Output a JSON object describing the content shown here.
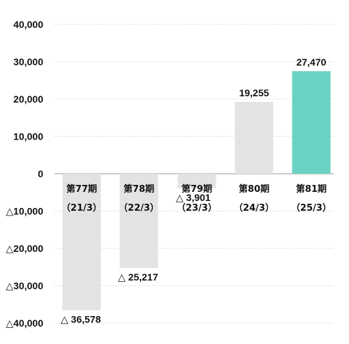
{
  "chart_data": {
    "type": "bar",
    "categories": [
      "第77期",
      "第78期",
      "第79期",
      "第80期",
      "第81期"
    ],
    "periods": [
      "（21/3）",
      "（22/3）",
      "（23/3）",
      "（24/3）",
      "（25/3）"
    ],
    "values": [
      -36578,
      -25217,
      -3901,
      19255,
      27470
    ],
    "value_labels": [
      "△ 36,578",
      "△ 25,217",
      "△ 3,901",
      "19,255",
      "27,470"
    ],
    "y_ticks": [
      {
        "value": 40000,
        "label": "40,000"
      },
      {
        "value": 30000,
        "label": "30,000"
      },
      {
        "value": 20000,
        "label": "20,000"
      },
      {
        "value": 10000,
        "label": "10,000"
      },
      {
        "value": 0,
        "label": "0"
      },
      {
        "value": -10000,
        "label": "△10,000"
      },
      {
        "value": -20000,
        "label": "△20,000"
      },
      {
        "value": -30000,
        "label": "△30,000"
      },
      {
        "value": -40000,
        "label": "△40,000"
      }
    ],
    "ylim": [
      -40000,
      40000
    ],
    "grid": true,
    "colors": {
      "bar": "#e3e3e3",
      "highlight_bar": "#6bd3c3",
      "grid": "#c8c8c8",
      "zero_line": "#9a9a9a",
      "text": "#111111"
    },
    "highlight_index": 4
  }
}
